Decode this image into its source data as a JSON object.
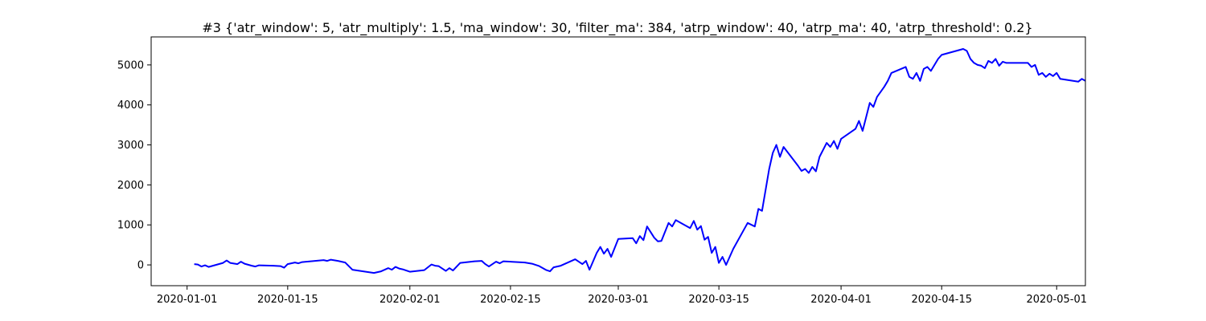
{
  "chart_data": {
    "type": "line",
    "title": "#3 {'atr_window': 5, 'atr_multiply': 1.5, 'ma_window': 30, 'filter_ma': 384, 'atrp_window': 40, 'atrp_ma': 40, 'atrp_threshold': 0.2}",
    "xlabel": "",
    "ylabel": "",
    "xlim": [
      "2019-12-27",
      "2020-05-05"
    ],
    "ylim": [
      -520,
      5700
    ],
    "grid": false,
    "x_ticks": [
      {
        "date": "2020-01-01",
        "label": "2020-01-01"
      },
      {
        "date": "2020-01-15",
        "label": "2020-01-15"
      },
      {
        "date": "2020-02-01",
        "label": "2020-02-01"
      },
      {
        "date": "2020-02-15",
        "label": "2020-02-15"
      },
      {
        "date": "2020-03-01",
        "label": "2020-03-01"
      },
      {
        "date": "2020-03-15",
        "label": "2020-03-15"
      },
      {
        "date": "2020-04-01",
        "label": "2020-04-01"
      },
      {
        "date": "2020-04-15",
        "label": "2020-04-15"
      },
      {
        "date": "2020-05-01",
        "label": "2020-05-01"
      }
    ],
    "y_ticks": [
      {
        "value": 0,
        "label": "0"
      },
      {
        "value": 1000,
        "label": "1000"
      },
      {
        "value": 2000,
        "label": "2000"
      },
      {
        "value": 3000,
        "label": "3000"
      },
      {
        "value": 4000,
        "label": "4000"
      },
      {
        "value": 5000,
        "label": "5000"
      }
    ],
    "series": [
      {
        "color": "#0000ff",
        "points": [
          [
            "2020-01-02",
            20
          ],
          [
            "2020-01-02T12:00",
            10
          ],
          [
            "2020-01-03",
            -40
          ],
          [
            "2020-01-03T12:00",
            -10
          ],
          [
            "2020-01-04",
            -50
          ],
          [
            "2020-01-06",
            50
          ],
          [
            "2020-01-06T12:00",
            110
          ],
          [
            "2020-01-07",
            50
          ],
          [
            "2020-01-08",
            20
          ],
          [
            "2020-01-08T12:00",
            80
          ],
          [
            "2020-01-09",
            30
          ],
          [
            "2020-01-10",
            -20
          ],
          [
            "2020-01-10T12:00",
            -40
          ],
          [
            "2020-01-11",
            -10
          ],
          [
            "2020-01-13",
            -20
          ],
          [
            "2020-01-14",
            -30
          ],
          [
            "2020-01-14T12:00",
            -70
          ],
          [
            "2020-01-15",
            20
          ],
          [
            "2020-01-16",
            60
          ],
          [
            "2020-01-16T12:00",
            40
          ],
          [
            "2020-01-17",
            70
          ],
          [
            "2020-01-20",
            120
          ],
          [
            "2020-01-20T12:00",
            100
          ],
          [
            "2020-01-21",
            130
          ],
          [
            "2020-01-22",
            100
          ],
          [
            "2020-01-23",
            60
          ],
          [
            "2020-01-24",
            -120
          ],
          [
            "2020-01-27",
            -200
          ],
          [
            "2020-01-28",
            -160
          ],
          [
            "2020-01-29",
            -80
          ],
          [
            "2020-01-29T12:00",
            -120
          ],
          [
            "2020-01-30",
            -50
          ],
          [
            "2020-01-30T12:00",
            -90
          ],
          [
            "2020-01-31",
            -110
          ],
          [
            "2020-02-01",
            -170
          ],
          [
            "2020-02-03",
            -130
          ],
          [
            "2020-02-04",
            10
          ],
          [
            "2020-02-04T12:00",
            -20
          ],
          [
            "2020-02-05",
            -30
          ],
          [
            "2020-02-06",
            -150
          ],
          [
            "2020-02-06T12:00",
            -80
          ],
          [
            "2020-02-07",
            -140
          ],
          [
            "2020-02-08",
            50
          ],
          [
            "2020-02-10",
            90
          ],
          [
            "2020-02-11",
            100
          ],
          [
            "2020-02-11T12:00",
            20
          ],
          [
            "2020-02-12",
            -40
          ],
          [
            "2020-02-13",
            80
          ],
          [
            "2020-02-13T12:00",
            40
          ],
          [
            "2020-02-14",
            90
          ],
          [
            "2020-02-17",
            60
          ],
          [
            "2020-02-18",
            30
          ],
          [
            "2020-02-19",
            -30
          ],
          [
            "2020-02-20",
            -130
          ],
          [
            "2020-02-20T12:00",
            -160
          ],
          [
            "2020-02-21",
            -60
          ],
          [
            "2020-02-22",
            -20
          ],
          [
            "2020-02-24",
            140
          ],
          [
            "2020-02-25",
            20
          ],
          [
            "2020-02-25T12:00",
            100
          ],
          [
            "2020-02-26",
            -120
          ],
          [
            "2020-02-27",
            300
          ],
          [
            "2020-02-27T12:00",
            450
          ],
          [
            "2020-02-28",
            280
          ],
          [
            "2020-02-28T12:00",
            400
          ],
          [
            "2020-02-29",
            200
          ],
          [
            "2020-03-01",
            650
          ],
          [
            "2020-03-03",
            670
          ],
          [
            "2020-03-03T12:00",
            540
          ],
          [
            "2020-03-04",
            720
          ],
          [
            "2020-03-04T12:00",
            620
          ],
          [
            "2020-03-05",
            960
          ],
          [
            "2020-03-06",
            680
          ],
          [
            "2020-03-06T12:00",
            590
          ],
          [
            "2020-03-07",
            600
          ],
          [
            "2020-03-08",
            1050
          ],
          [
            "2020-03-08T12:00",
            960
          ],
          [
            "2020-03-09",
            1120
          ],
          [
            "2020-03-10",
            1020
          ],
          [
            "2020-03-11",
            920
          ],
          [
            "2020-03-11T12:00",
            1100
          ],
          [
            "2020-03-12",
            880
          ],
          [
            "2020-03-12T12:00",
            970
          ],
          [
            "2020-03-13",
            630
          ],
          [
            "2020-03-13T12:00",
            700
          ],
          [
            "2020-03-14",
            300
          ],
          [
            "2020-03-14T12:00",
            450
          ],
          [
            "2020-03-15",
            50
          ],
          [
            "2020-03-15T12:00",
            200
          ],
          [
            "2020-03-16",
            0
          ],
          [
            "2020-03-17",
            400
          ],
          [
            "2020-03-19",
            1050
          ],
          [
            "2020-03-20",
            960
          ],
          [
            "2020-03-20T12:00",
            1400
          ],
          [
            "2020-03-21",
            1350
          ],
          [
            "2020-03-22",
            2400
          ],
          [
            "2020-03-22T12:00",
            2800
          ],
          [
            "2020-03-23",
            3000
          ],
          [
            "2020-03-23T12:00",
            2700
          ],
          [
            "2020-03-24",
            2950
          ],
          [
            "2020-03-26",
            2480
          ],
          [
            "2020-03-26T12:00",
            2350
          ],
          [
            "2020-03-27",
            2400
          ],
          [
            "2020-03-27T12:00",
            2300
          ],
          [
            "2020-03-28",
            2450
          ],
          [
            "2020-03-28T12:00",
            2340
          ],
          [
            "2020-03-29",
            2700
          ],
          [
            "2020-03-30",
            3050
          ],
          [
            "2020-03-30T12:00",
            2950
          ],
          [
            "2020-03-31",
            3100
          ],
          [
            "2020-03-31T12:00",
            2900
          ],
          [
            "2020-04-01",
            3150
          ],
          [
            "2020-04-03",
            3400
          ],
          [
            "2020-04-03T12:00",
            3600
          ],
          [
            "2020-04-04",
            3350
          ],
          [
            "2020-04-05",
            4050
          ],
          [
            "2020-04-05T12:00",
            3950
          ],
          [
            "2020-04-06",
            4200
          ],
          [
            "2020-04-07",
            4450
          ],
          [
            "2020-04-07T12:00",
            4600
          ],
          [
            "2020-04-08",
            4800
          ],
          [
            "2020-04-10",
            4950
          ],
          [
            "2020-04-10T12:00",
            4700
          ],
          [
            "2020-04-11",
            4650
          ],
          [
            "2020-04-11T12:00",
            4800
          ],
          [
            "2020-04-12",
            4600
          ],
          [
            "2020-04-12T12:00",
            4900
          ],
          [
            "2020-04-13",
            4950
          ],
          [
            "2020-04-13T12:00",
            4850
          ],
          [
            "2020-04-14",
            5000
          ],
          [
            "2020-04-14T12:00",
            5150
          ],
          [
            "2020-04-15",
            5250
          ],
          [
            "2020-04-18",
            5400
          ],
          [
            "2020-04-18T12:00",
            5350
          ],
          [
            "2020-04-19",
            5150
          ],
          [
            "2020-04-19T12:00",
            5050
          ],
          [
            "2020-04-20",
            5000
          ],
          [
            "2020-04-20T12:00",
            4980
          ],
          [
            "2020-04-21",
            4920
          ],
          [
            "2020-04-21T12:00",
            5100
          ],
          [
            "2020-04-22",
            5050
          ],
          [
            "2020-04-22T12:00",
            5150
          ],
          [
            "2020-04-23",
            4980
          ],
          [
            "2020-04-23T12:00",
            5080
          ],
          [
            "2020-04-24",
            5050
          ],
          [
            "2020-04-27",
            5050
          ],
          [
            "2020-04-27T12:00",
            4950
          ],
          [
            "2020-04-28",
            5000
          ],
          [
            "2020-04-28T12:00",
            4750
          ],
          [
            "2020-04-29",
            4800
          ],
          [
            "2020-04-29T12:00",
            4700
          ],
          [
            "2020-04-30",
            4780
          ],
          [
            "2020-04-30T12:00",
            4720
          ],
          [
            "2020-05-01",
            4800
          ],
          [
            "2020-05-01T12:00",
            4650
          ],
          [
            "2020-05-04",
            4580
          ],
          [
            "2020-05-04T12:00",
            4650
          ],
          [
            "2020-05-05",
            4600
          ]
        ]
      }
    ]
  }
}
